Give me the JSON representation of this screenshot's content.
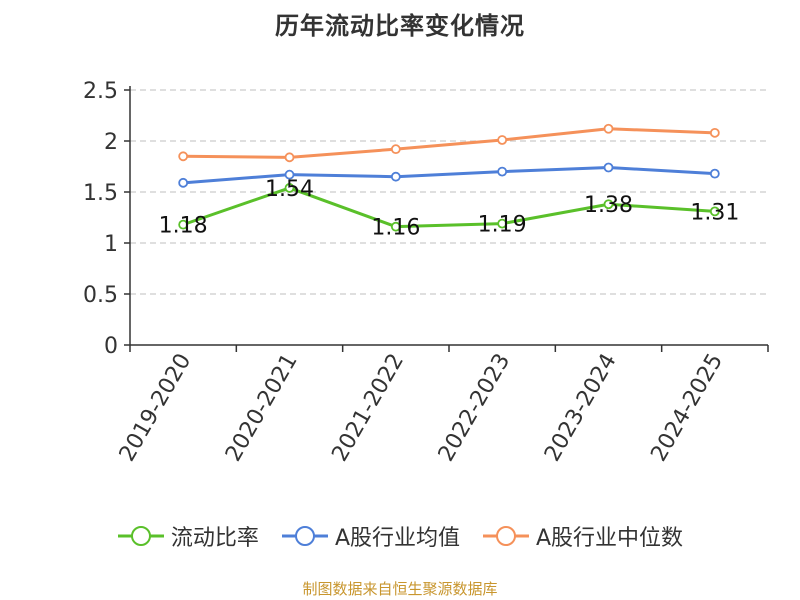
{
  "title": "历年流动比率变化情况",
  "source_note": "制图数据来自恒生聚源数据库",
  "chart_data": {
    "type": "line",
    "title": "历年流动比率变化情况",
    "categories": [
      "2019-2020",
      "2020-2021",
      "2021-2022",
      "2022-2023",
      "2023-2024",
      "2024-2025"
    ],
    "ylim": [
      0,
      2.5
    ],
    "yticks": [
      "0",
      "0.5",
      "1",
      "1.5",
      "2",
      "2.5"
    ],
    "grid": true,
    "legend_position": "bottom",
    "series": [
      {
        "name": "流动比率",
        "color": "#5ac02a",
        "values": [
          1.18,
          1.54,
          1.16,
          1.19,
          1.38,
          1.31
        ],
        "labels": [
          "1.18",
          "1.54",
          "1.16",
          "1.19",
          "1.38",
          "1.31"
        ],
        "show_labels": true
      },
      {
        "name": "A股行业均值",
        "color": "#4e7fd8",
        "values": [
          1.59,
          1.67,
          1.65,
          1.7,
          1.74,
          1.68
        ],
        "show_labels": false
      },
      {
        "name": "A股行业中位数",
        "color": "#f5915a",
        "values": [
          1.85,
          1.84,
          1.92,
          2.01,
          2.12,
          2.08
        ],
        "show_labels": false
      }
    ]
  }
}
